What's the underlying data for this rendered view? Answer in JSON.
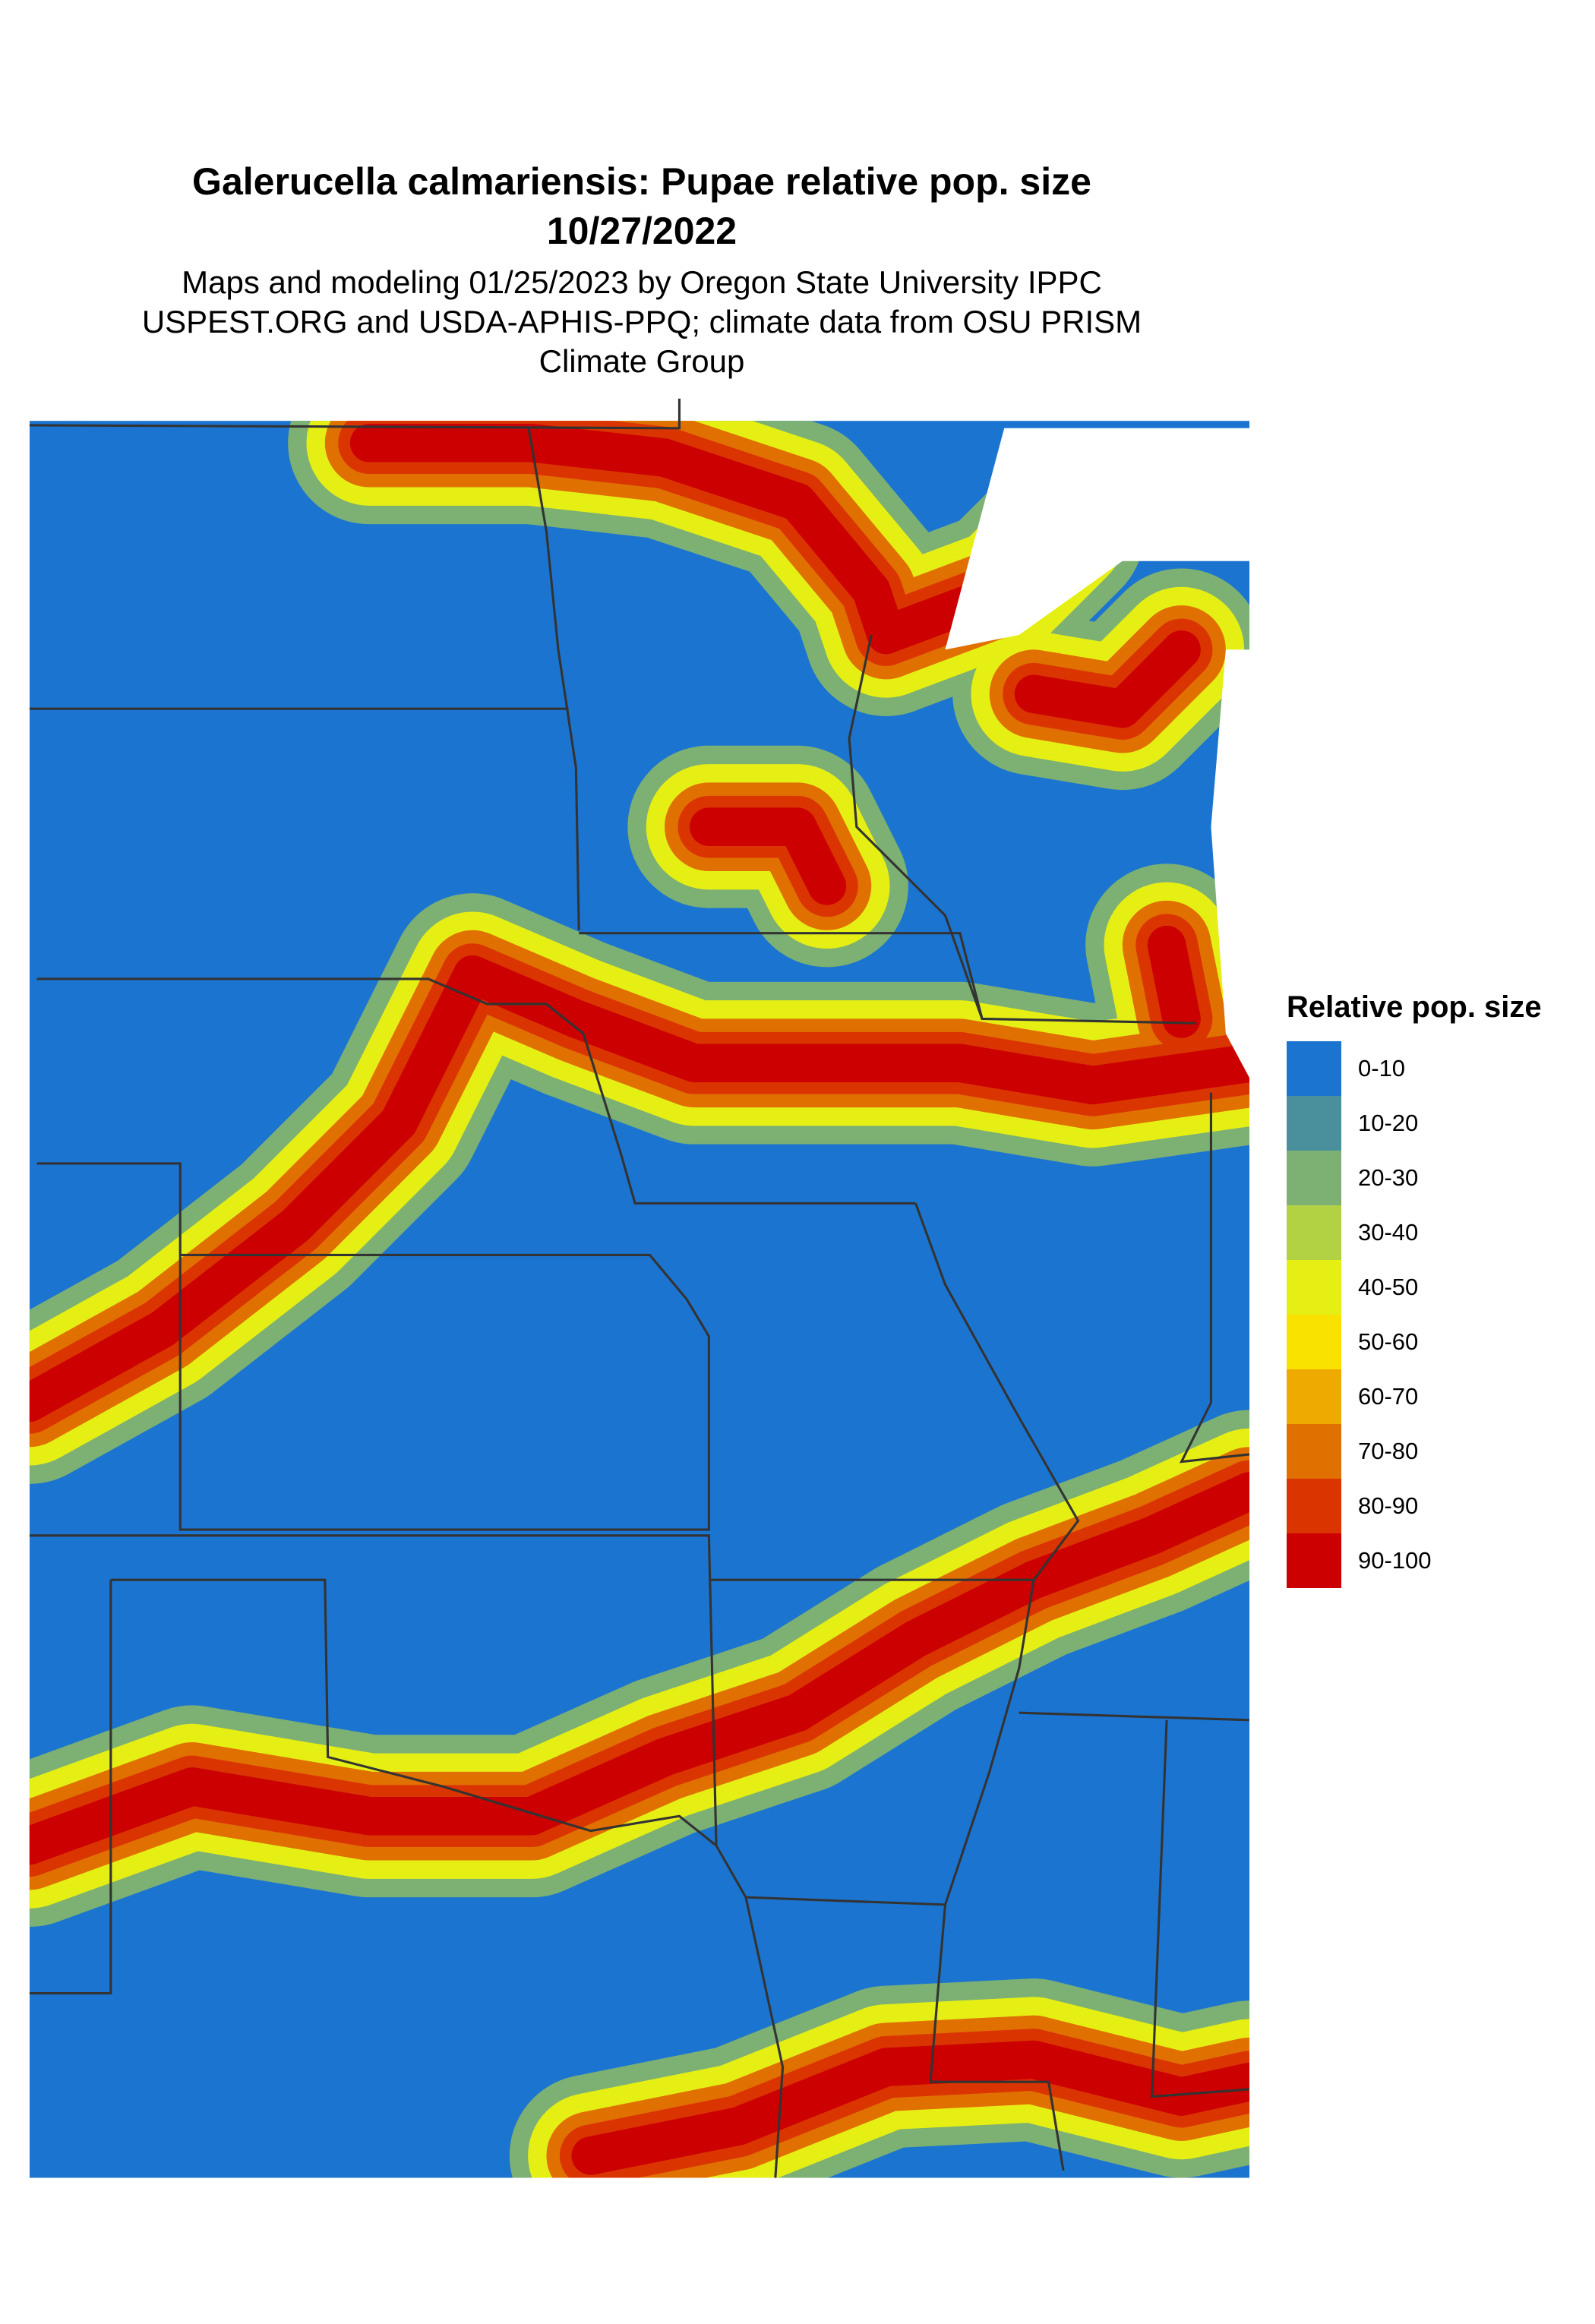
{
  "title": "Galerucella calmariensis: Pupae relative pop. size",
  "date": "10/27/2022",
  "subtitle_lines": [
    "Maps and modeling 01/25/2023 by Oregon State University IPPC",
    "USPEST.ORG and USDA-APHIS-PPQ; climate data from OSU PRISM",
    "Climate Group"
  ],
  "chart_data": {
    "type": "heatmap",
    "title": "Galerucella calmariensis: Pupae relative pop. size",
    "legend": {
      "title": "Relative pop. size",
      "placement": "right",
      "classes": [
        {
          "label": "0-10",
          "color": "#1b75d0"
        },
        {
          "label": "10-20",
          "color": "#4a8f9c"
        },
        {
          "label": "20-30",
          "color": "#7db073"
        },
        {
          "label": "30-40",
          "color": "#b2d244"
        },
        {
          "label": "40-50",
          "color": "#e6ef14"
        },
        {
          "label": "50-60",
          "color": "#f9e100"
        },
        {
          "label": "60-70",
          "color": "#efaa00"
        },
        {
          "label": "70-80",
          "color": "#e07000"
        },
        {
          "label": "80-90",
          "color": "#da3500"
        },
        {
          "label": "90-100",
          "color": "#cc0000"
        }
      ]
    }
  }
}
